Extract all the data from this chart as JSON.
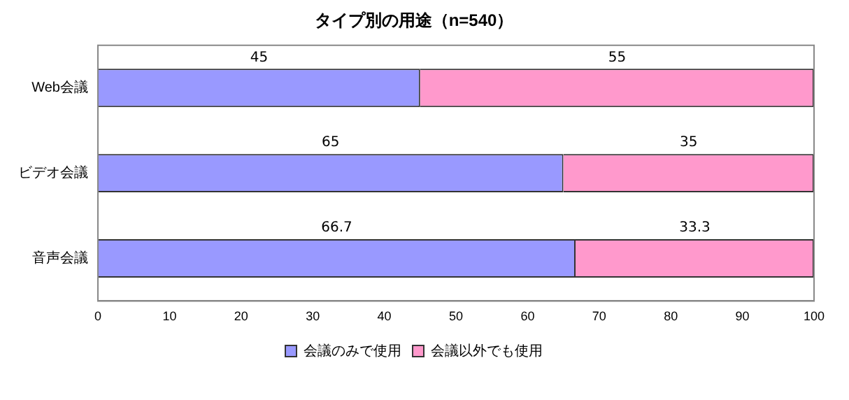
{
  "chart_data": {
    "type": "bar",
    "orientation": "horizontal",
    "stacked": true,
    "title": "タイプ別の用途（n=540）",
    "categories": [
      "Web会議",
      "ビデオ会議",
      "音声会議"
    ],
    "series": [
      {
        "name": "会議のみで使用",
        "color": "#9999ff",
        "values": [
          45,
          65,
          66.7
        ]
      },
      {
        "name": "会議以外でも使用",
        "color": "#ff99cc",
        "values": [
          55,
          35,
          33.3
        ]
      }
    ],
    "xlim": [
      0,
      100
    ],
    "xticks": [
      0,
      10,
      20,
      30,
      40,
      50,
      60,
      70,
      80,
      90,
      100
    ],
    "grid": false,
    "legend": "bottom",
    "data_labels": true
  }
}
